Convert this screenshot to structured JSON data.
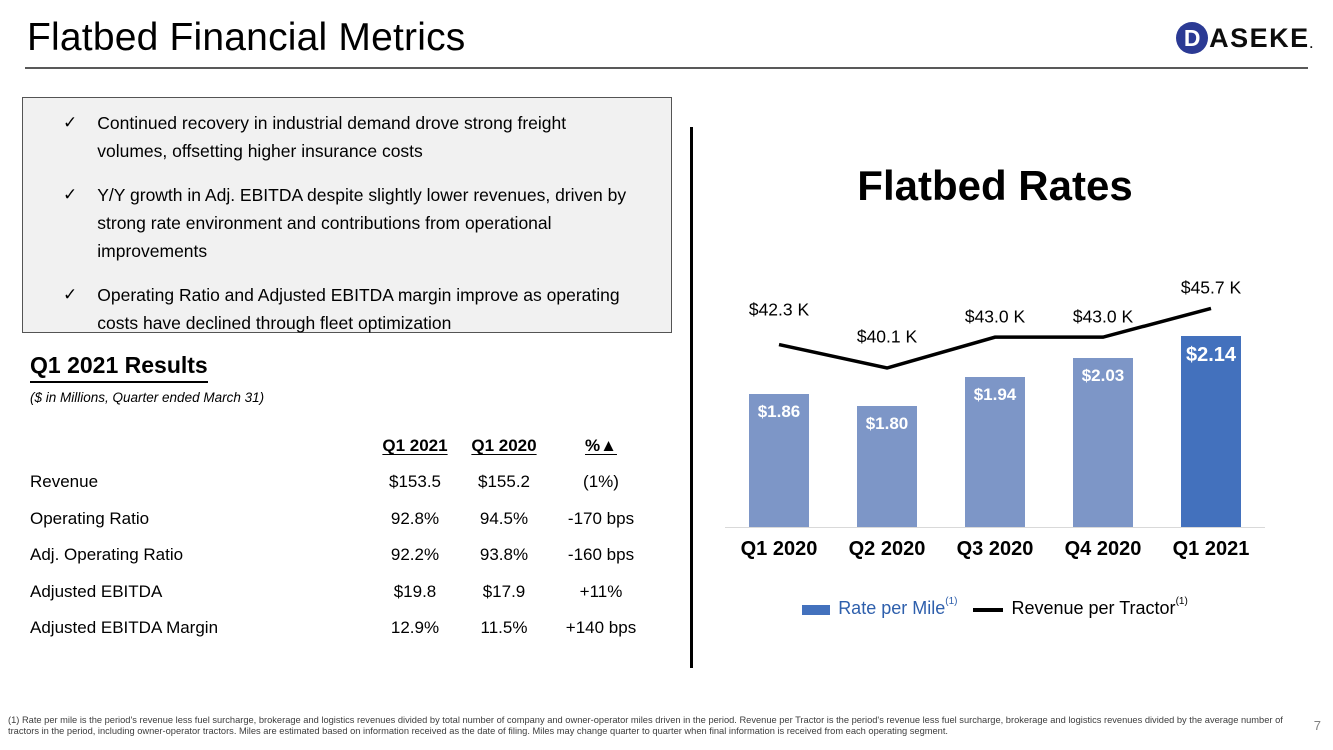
{
  "slide": {
    "title": "Flatbed Financial Metrics",
    "page_number": "7",
    "logo": {
      "d": "D",
      "rest": "ASEKE",
      "mark": "."
    }
  },
  "highlights": [
    "Continued recovery in industrial demand drove strong freight volumes, offsetting higher insurance costs",
    "Y/Y growth in Adj. EBITDA despite slightly lower revenues, driven by strong rate environment and contributions from operational improvements",
    "Operating Ratio and Adjusted EBITDA margin improve as operating costs have declined through fleet optimization"
  ],
  "results": {
    "heading": "Q1 2021 Results",
    "subtitle": "($ in Millions, Quarter ended March 31)",
    "columns": [
      "Q1 2021",
      "Q1 2020",
      "%▲"
    ],
    "rows": [
      {
        "label": "Revenue",
        "q1_2021": "$153.5",
        "q1_2020": "$155.2",
        "change": "(1%)"
      },
      {
        "label": "Operating Ratio",
        "q1_2021": "92.8%",
        "q1_2020": "94.5%",
        "change": "-170 bps"
      },
      {
        "label": "Adj. Operating Ratio",
        "q1_2021": "92.2%",
        "q1_2020": "93.8%",
        "change": "-160 bps"
      },
      {
        "label": "Adjusted EBITDA",
        "q1_2021": "$19.8",
        "q1_2020": "$17.9",
        "change": "+11%"
      },
      {
        "label": "Adjusted EBITDA Margin",
        "q1_2021": "12.9%",
        "q1_2020": "11.5%",
        "change": "+140 bps"
      }
    ]
  },
  "chart_data": {
    "type": "bar+line",
    "title": "Flatbed Rates",
    "categories": [
      "Q1 2020",
      "Q2 2020",
      "Q3 2020",
      "Q4 2020",
      "Q1 2021"
    ],
    "series": [
      {
        "name": "Rate per Mile",
        "footnote_ref": "(1)",
        "type": "bar",
        "values": [
          1.86,
          1.8,
          1.94,
          2.03,
          2.14
        ],
        "labels": [
          "$1.86",
          "$1.80",
          "$1.94",
          "$2.03",
          "$2.14"
        ],
        "colors": [
          "#7D96C7",
          "#7D96C7",
          "#7D96C7",
          "#7D96C7",
          "#4371BD"
        ]
      },
      {
        "name": "Revenue per Tractor",
        "footnote_ref": "(1)",
        "type": "line",
        "values": [
          42.3,
          40.1,
          43.0,
          43.0,
          45.7
        ],
        "labels": [
          "$42.3 K",
          "$40.1 K",
          "$43.0 K",
          "$43.0 K",
          "$45.7 K"
        ],
        "color": "#000000"
      }
    ],
    "legend_position": "bottom",
    "gridlines": false,
    "value_axis_hidden": true
  },
  "footnote": "(1) Rate per mile is the period's revenue less fuel surcharge, brokerage and logistics revenues divided by total number of company and owner-operator miles driven in the period. Revenue per Tractor is the period's revenue less fuel surcharge, brokerage and logistics revenues divided by the average number of tractors in the period, including owner-operator tractors. Miles are estimated based on information received as the date of filing. Miles may change quarter to quarter when final information is received from each operating segment."
}
